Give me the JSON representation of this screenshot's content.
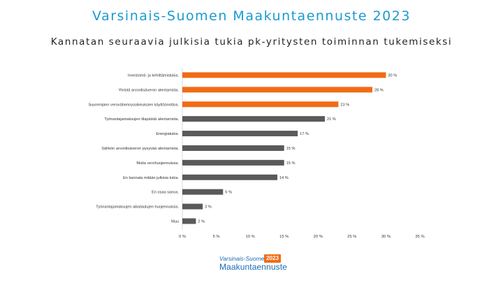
{
  "header": {
    "title": "Varsinais-Suomen Maakuntaennuste 2023",
    "subtitle": "Kannatan seuraavia julkisia tukia pk-yritysten toiminnan tukemiseksi"
  },
  "logo": {
    "line1": "Varsinais-Suomen",
    "line2": "Maakuntaennuste",
    "badge": "2023"
  },
  "colors": {
    "title": "#1a9bd1",
    "highlight": "#f26b16",
    "default": "#5a5a5a",
    "axis": "#d9d9d9",
    "logo_blue": "#1a6cb5",
    "logo_orange": "#f26b16"
  },
  "chart_data": {
    "type": "bar",
    "orientation": "horizontal",
    "categories": [
      "Investointi- ja kehittämistukia.",
      "Yleistä arvonlisäveron alentamista.",
      "Suurempien verovähennysoikeuksien käyttöönottoa.",
      "Työnantajamaksujen tilapäistä alentamista.",
      "Energiatukia.",
      "Sähkön arvonlisäveron pysyvää alentamista.",
      "Muita verohuojennuksia.",
      "En kannata mitään julkisia tukia.",
      "En osaa sanoa.",
      "Työnantajamaksujen aikataulujen huojennuksia.",
      "Muu"
    ],
    "values": [
      30,
      28,
      23,
      21,
      17,
      15,
      15,
      14,
      6,
      3,
      2
    ],
    "value_labels": [
      "30 %",
      "28 %",
      "23 %",
      "21 %",
      "17 %",
      "15 %",
      "15 %",
      "14 %",
      "6 %",
      "3 %",
      "2 %"
    ],
    "highlighted": [
      true,
      true,
      true,
      false,
      false,
      false,
      false,
      false,
      false,
      false,
      false
    ],
    "xticks": [
      0,
      5,
      10,
      15,
      20,
      25,
      30,
      35
    ],
    "xtick_labels": [
      "0 %",
      "5 %",
      "10 %",
      "15 %",
      "20 %",
      "25 %",
      "30 %",
      "35 %"
    ],
    "xlim": [
      0,
      35
    ],
    "grid": false,
    "legend": "none"
  }
}
